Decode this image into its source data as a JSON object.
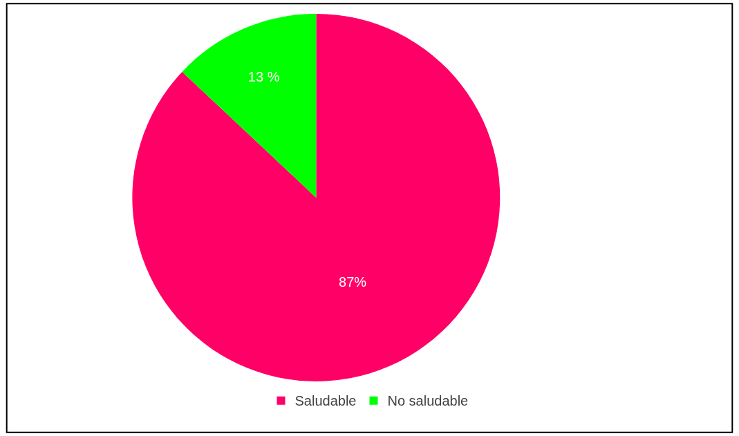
{
  "chart_data": {
    "type": "pie",
    "categories": [
      "Saludable",
      "No saludable"
    ],
    "values": [
      87,
      13
    ],
    "colors": [
      "#ff0066",
      "#00ff00"
    ],
    "value_labels": [
      "87%",
      "13 %"
    ],
    "legend": "bottom"
  }
}
